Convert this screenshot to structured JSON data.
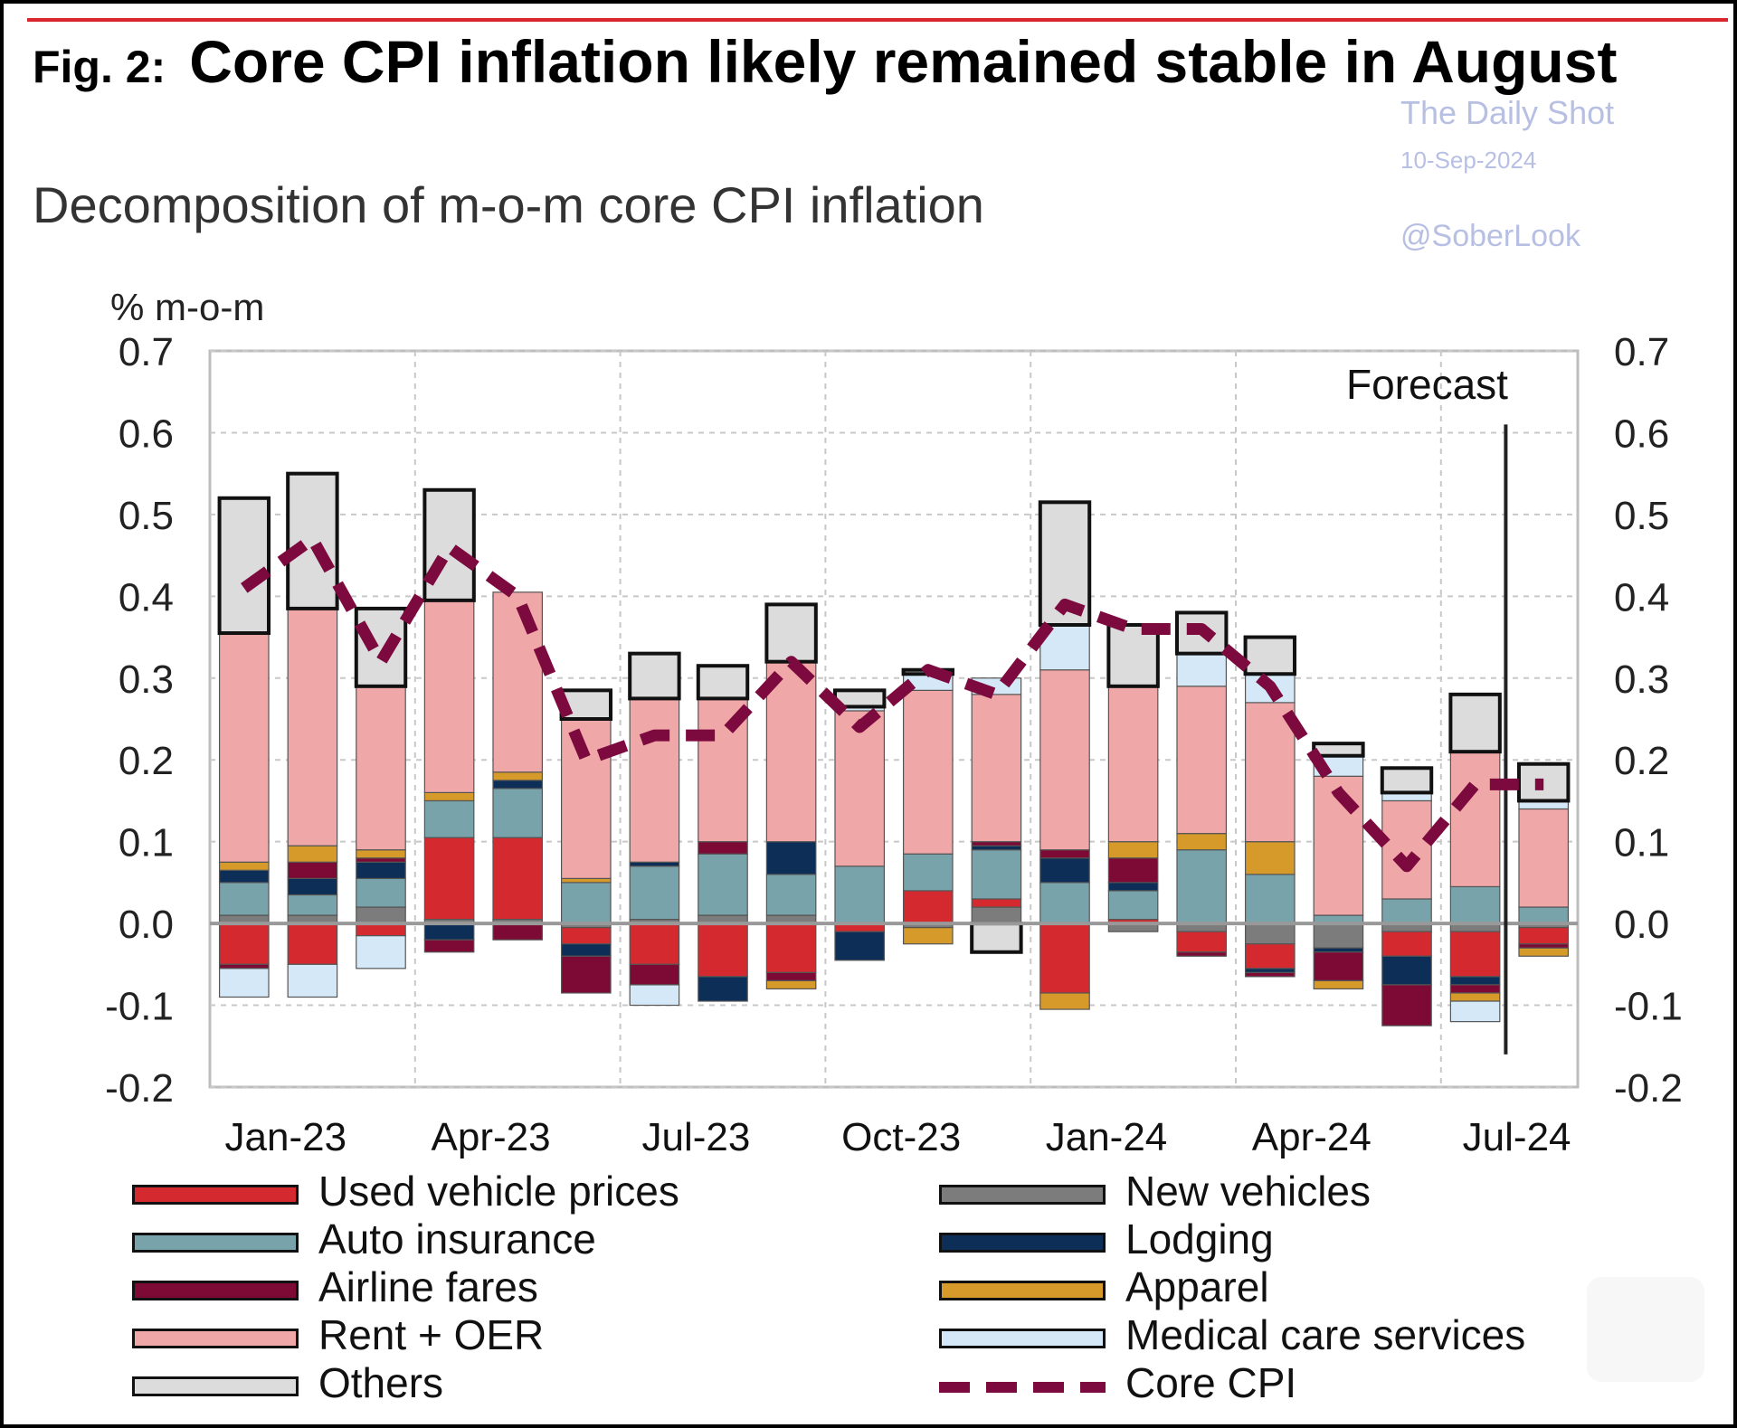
{
  "header": {
    "fig_label": "Fig. 2:",
    "title": "Core CPI inflation likely remained stable in August",
    "subtitle": "Decomposition of m-o-m core CPI inflation"
  },
  "watermark": {
    "source": "The Daily Shot",
    "date": "10-Sep-2024",
    "handle": "@SoberLook"
  },
  "chart_data": {
    "type": "bar",
    "stacked": true,
    "ylabel": "% m-o-m",
    "ylim": [
      -0.2,
      0.7
    ],
    "yticks": [
      "0.7",
      "0.6",
      "0.5",
      "0.4",
      "0.3",
      "0.2",
      "0.1",
      "0.0",
      "-0.1",
      "-0.2"
    ],
    "ytick_values": [
      0.7,
      0.6,
      0.5,
      0.4,
      0.3,
      0.2,
      0.1,
      0.0,
      -0.1,
      -0.2
    ],
    "x_tick_labels": [
      {
        "label": "Jan-23",
        "index": 0
      },
      {
        "label": "Apr-23",
        "index": 3
      },
      {
        "label": "Jul-23",
        "index": 6
      },
      {
        "label": "Oct-23",
        "index": 9
      },
      {
        "label": "Jan-24",
        "index": 12
      },
      {
        "label": "Apr-24",
        "index": 15
      },
      {
        "label": "Jul-24",
        "index": 18
      }
    ],
    "forecast_label": "Forecast",
    "forecast_index": 19,
    "grid": true,
    "colors": {
      "Used vehicle prices": "#d42a2f",
      "New vehicles": "#7c7c7c",
      "Auto insurance": "#79a3aa",
      "Lodging": "#0c2e57",
      "Airline fares": "#7d0a35",
      "Apparel": "#d59a2a",
      "Rent + OER": "#f0a7a8",
      "Medical care services": "#d4e8f7",
      "Others": "#dcdcdc",
      "Core CPI": "#7d0a3e"
    },
    "stack_order": [
      "New vehicles",
      "Used vehicle prices",
      "Auto insurance",
      "Lodging",
      "Airline fares",
      "Apparel",
      "Rent + OER",
      "Medical care services",
      "Others"
    ],
    "series": [
      {
        "name": "Used vehicle prices",
        "values": [
          -0.05,
          -0.05,
          -0.015,
          0.1,
          0.1,
          -0.02,
          -0.05,
          -0.065,
          -0.06,
          -0.01,
          0.04,
          0.01,
          -0.085,
          0.005,
          -0.025,
          -0.03,
          0,
          -0.03,
          -0.055,
          -0.02
        ]
      },
      {
        "name": "New vehicles",
        "values": [
          0.01,
          0.01,
          0.02,
          0.005,
          0.005,
          -0.005,
          0.005,
          0.01,
          0.01,
          0,
          -0.005,
          0.02,
          0.0,
          -0.01,
          -0.01,
          -0.025,
          -0.03,
          -0.01,
          -0.01,
          -0.005
        ]
      },
      {
        "name": "Auto insurance",
        "values": [
          0.04,
          0.025,
          0.035,
          0.045,
          0.06,
          0.05,
          0.065,
          0.075,
          0.05,
          0.07,
          0.045,
          0.06,
          0.05,
          0.035,
          0.09,
          0.06,
          0.01,
          0.03,
          0.045,
          0.02
        ]
      },
      {
        "name": "Lodging",
        "values": [
          0.015,
          0.02,
          0.02,
          -0.02,
          0.01,
          -0.015,
          0.005,
          -0.03,
          0.04,
          -0.035,
          0,
          0.005,
          0.03,
          0.01,
          0,
          -0.005,
          -0.005,
          -0.035,
          -0.01,
          0
        ]
      },
      {
        "name": "Airline fares",
        "values": [
          -0.005,
          0.02,
          0.005,
          -0.015,
          -0.02,
          -0.045,
          -0.025,
          0.015,
          -0.01,
          0,
          0,
          0.005,
          0.01,
          0.03,
          -0.005,
          -0.005,
          -0.035,
          -0.05,
          -0.01,
          -0.005
        ]
      },
      {
        "name": "Apparel",
        "values": [
          0.01,
          0.02,
          0.01,
          0.01,
          0.01,
          0.005,
          0,
          0,
          -0.01,
          0,
          -0.02,
          0,
          -0.02,
          0.02,
          0.02,
          0.04,
          -0.01,
          0,
          -0.01,
          -0.01
        ]
      },
      {
        "name": "Rent + OER",
        "values": [
          0.28,
          0.29,
          0.2,
          0.235,
          0.22,
          0.195,
          0.2,
          0.175,
          0.22,
          0.19,
          0.2,
          0.18,
          0.22,
          0.19,
          0.18,
          0.17,
          0.17,
          0.12,
          0.165,
          0.12
        ]
      },
      {
        "name": "Medical care services",
        "values": [
          -0.035,
          -0.04,
          -0.04,
          0,
          0,
          0,
          -0.025,
          0,
          0,
          0.005,
          0.02,
          0.02,
          0.055,
          0,
          0.04,
          0.035,
          0.025,
          0.01,
          -0.025,
          0.01
        ]
      },
      {
        "name": "Others",
        "values": [
          0.165,
          0.165,
          0.095,
          0.135,
          0,
          0.035,
          0.055,
          0.04,
          0.07,
          0.02,
          0.005,
          -0.035,
          0.15,
          0.075,
          0.05,
          0.045,
          0.015,
          0.03,
          0.07,
          0.045
        ]
      },
      {
        "name": "Core CPI",
        "type": "line",
        "style": "dashed",
        "values": [
          0.41,
          0.47,
          0.32,
          0.46,
          0.4,
          0.2,
          0.23,
          0.23,
          0.32,
          0.24,
          0.31,
          0.28,
          0.39,
          0.36,
          0.36,
          0.29,
          0.16,
          0.07,
          0.17,
          0.17
        ]
      }
    ]
  },
  "legend": {
    "left": [
      "Used vehicle prices",
      "Auto insurance",
      "Airline fares",
      "Rent + OER",
      "Others"
    ],
    "right": [
      "New vehicles",
      "Lodging",
      "Apparel",
      "Medical care services",
      "Core CPI"
    ]
  }
}
